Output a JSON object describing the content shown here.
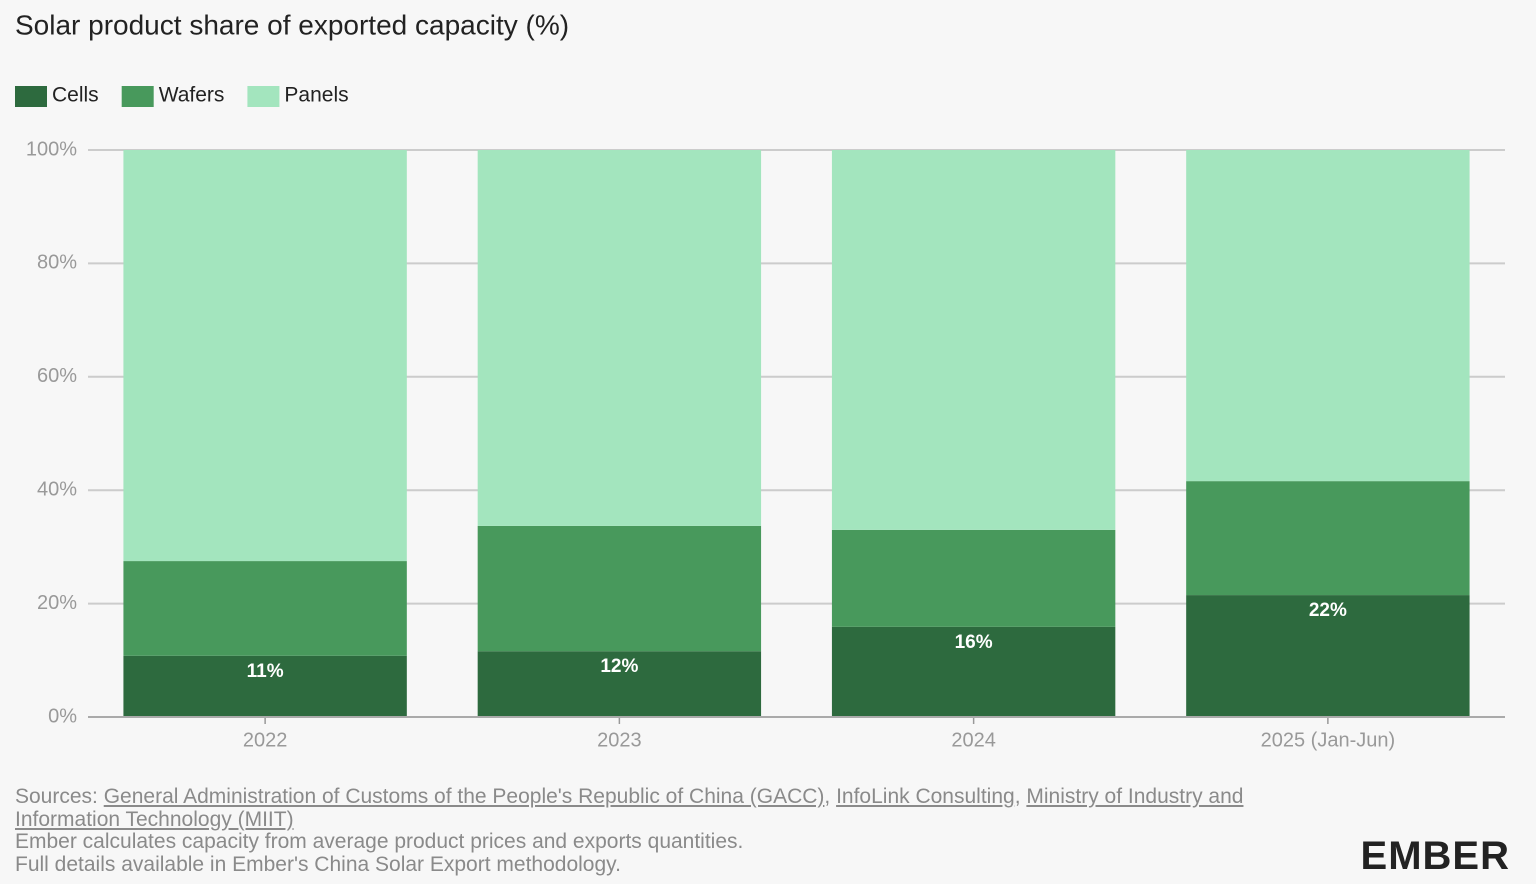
{
  "chart_data": {
    "type": "stacked_bar",
    "title": "Solar product share of exported capacity (%)",
    "categories": [
      "2022",
      "2023",
      "2024",
      "2025 (Jan-Jun)"
    ],
    "series": [
      {
        "name": "Cells",
        "color": "#2d6a3e",
        "values": [
          10.8,
          11.6,
          15.9,
          21.5
        ],
        "value_labels": [
          "11%",
          "12%",
          "16%",
          "22%"
        ]
      },
      {
        "name": "Wafers",
        "color": "#48995c",
        "values": [
          16.7,
          22.1,
          17.1,
          20.1
        ]
      },
      {
        "name": "Panels",
        "color": "#a3e5be",
        "values": [
          72.5,
          66.3,
          67.0,
          58.4
        ]
      }
    ],
    "ylim": [
      0,
      100
    ],
    "yticks": [
      {
        "value": 0,
        "label": "0%"
      },
      {
        "value": 20,
        "label": "20%"
      },
      {
        "value": 40,
        "label": "40%"
      },
      {
        "value": 60,
        "label": "60%"
      },
      {
        "value": 80,
        "label": "80%"
      },
      {
        "value": 100,
        "label": "100%"
      }
    ],
    "grid": true,
    "legend": "top-left"
  },
  "footer": {
    "sources_label": "Sources:",
    "sources": [
      "General Administration of Customs of the People's Republic of China (GACC)",
      "InfoLink Consulting",
      "Ministry of Industry and Information Technology (MIIT)"
    ],
    "separator": ", ",
    "notes": [
      "Ember calculates capacity from average product prices and exports quantities.",
      "Full details available in Ember's China Solar Export methodology."
    ],
    "logo": "EMBER"
  }
}
